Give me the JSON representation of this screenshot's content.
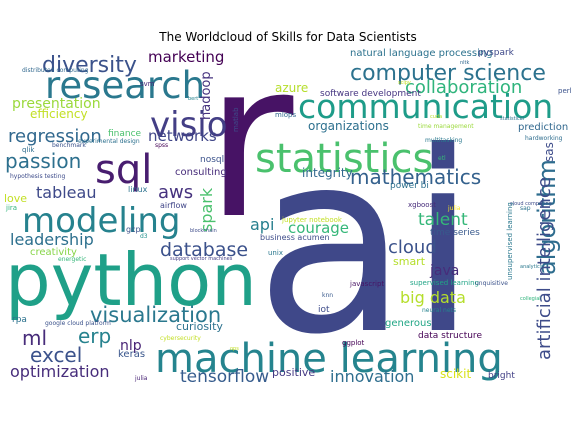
{
  "title": "The Worldcloud of Skills for Data Scientists",
  "palette": "viridis",
  "words": [
    {
      "text": "ai",
      "color": "#3f4889"
    },
    {
      "text": "r",
      "color": "#471365"
    },
    {
      "text": "python",
      "color": "#1fa088"
    },
    {
      "text": "machine learning",
      "color": "#25848e"
    },
    {
      "text": "statistics",
      "color": "#4ac16d"
    },
    {
      "text": "communication",
      "color": "#1e9c89"
    },
    {
      "text": "research",
      "color": "#2a788e"
    },
    {
      "text": "modeling",
      "color": "#26828e"
    },
    {
      "text": "computer science",
      "color": "#2c728e"
    },
    {
      "text": "sql",
      "color": "#481d6f"
    },
    {
      "text": "visio",
      "color": "#433e85"
    },
    {
      "text": "diversity",
      "color": "#3b528b"
    },
    {
      "text": "mathematics",
      "color": "#34618d"
    },
    {
      "text": "algorithm",
      "color": "#2e6d8e"
    },
    {
      "text": "database",
      "color": "#3b518b"
    },
    {
      "text": "visualization",
      "color": "#2a788e"
    },
    {
      "text": "artificial intelligence",
      "color": "#3e4c8a"
    },
    {
      "text": "excel",
      "color": "#3b528b"
    },
    {
      "text": "optimization",
      "color": "#472d7b"
    },
    {
      "text": "tensorflow",
      "color": "#365c8d"
    },
    {
      "text": "passion",
      "color": "#2d708e"
    },
    {
      "text": "regression",
      "color": "#31688e"
    },
    {
      "text": "presentation",
      "color": "#9bd93c"
    },
    {
      "text": "collaboration",
      "color": "#2fb47c"
    },
    {
      "text": "networks",
      "color": "#404688"
    },
    {
      "text": "tableau",
      "color": "#3e4989"
    },
    {
      "text": "aws",
      "color": "#46327e"
    },
    {
      "text": "leadership",
      "color": "#2d708e"
    },
    {
      "text": "spark",
      "color": "#4ac16d"
    },
    {
      "text": "cloud",
      "color": "#3b528b"
    },
    {
      "text": "talent",
      "color": "#35b779"
    },
    {
      "text": "big data",
      "color": "#b5de2b"
    },
    {
      "text": "ml",
      "color": "#472c7a"
    },
    {
      "text": "erp",
      "color": "#26828e"
    },
    {
      "text": "nlp",
      "color": "#482475"
    },
    {
      "text": "innovation",
      "color": "#2e6e8e"
    },
    {
      "text": "api",
      "color": "#277f8e"
    },
    {
      "text": "courage",
      "color": "#35b779"
    },
    {
      "text": "java",
      "color": "#472c7a"
    },
    {
      "text": "marketing",
      "color": "#440154"
    },
    {
      "text": "efficiency",
      "color": "#c2df23"
    },
    {
      "text": "hadoop",
      "color": "#46337f"
    },
    {
      "text": "azure",
      "color": "#b5de2b"
    },
    {
      "text": "organizations",
      "color": "#2d708e"
    },
    {
      "text": "integrity",
      "color": "#31688e"
    },
    {
      "text": "natural language processing",
      "color": "#2c728e"
    },
    {
      "text": "software development",
      "color": "#453581"
    },
    {
      "text": "sas",
      "color": "#3e4c8a"
    },
    {
      "text": "time series",
      "color": "#38598c"
    },
    {
      "text": "scikit",
      "color": "#d8e219"
    },
    {
      "text": "positive",
      "color": "#443983"
    },
    {
      "text": "curiosity",
      "color": "#2c728e"
    },
    {
      "text": "consulting",
      "color": "#472c7a"
    },
    {
      "text": "creativity",
      "color": "#87d549"
    },
    {
      "text": "smart",
      "color": "#b5de2b"
    },
    {
      "text": "generous",
      "color": "#21a685"
    },
    {
      "text": "love",
      "color": "#c2df23"
    },
    {
      "text": "pyspark",
      "color": "#3e4989"
    },
    {
      "text": "prediction",
      "color": "#31688e"
    },
    {
      "text": "keras",
      "color": "#39568c"
    },
    {
      "text": "linux",
      "color": "#2c728e"
    },
    {
      "text": "airflow",
      "color": "#404688"
    },
    {
      "text": "nosql",
      "color": "#3b528b"
    },
    {
      "text": "finance",
      "color": "#4ac16d"
    },
    {
      "text": "power bi",
      "color": "#2d708e"
    },
    {
      "text": "bright",
      "color": "#424086"
    },
    {
      "text": "data structure",
      "color": "#440154"
    },
    {
      "text": "xgboost",
      "color": "#472c7a"
    },
    {
      "text": "supervised learning",
      "color": "#20a486"
    },
    {
      "text": "unsupervised learning",
      "color": "#2a788e"
    },
    {
      "text": "business acumen",
      "color": "#3e4c8a"
    },
    {
      "text": "jupyter notebook",
      "color": "#c2df23"
    },
    {
      "text": "gcp",
      "color": "#3b528b"
    },
    {
      "text": "unix",
      "color": "#2a788e"
    },
    {
      "text": "iot",
      "color": "#3e4c8a"
    },
    {
      "text": "javascript",
      "color": "#471365"
    },
    {
      "text": "knn",
      "color": "#38598c"
    },
    {
      "text": "svm",
      "color": "#482878"
    },
    {
      "text": "matlab",
      "color": "#3e4c8a"
    },
    {
      "text": "mlops",
      "color": "#31688e"
    },
    {
      "text": "perl",
      "color": "#3b528b"
    },
    {
      "text": "rpa",
      "color": "#2c728e"
    },
    {
      "text": "spss",
      "color": "#440154"
    },
    {
      "text": "qlik",
      "color": "#2e6d8e"
    },
    {
      "text": "benchmark",
      "color": "#3b528b"
    },
    {
      "text": "jira",
      "color": "#2fb47c"
    },
    {
      "text": "d3",
      "color": "#21918c"
    },
    {
      "text": "ggplot",
      "color": "#440154"
    },
    {
      "text": "julia",
      "color": "#482475"
    },
    {
      "text": "energetic",
      "color": "#35b779"
    },
    {
      "text": "blockchain",
      "color": "#3e4c8a"
    },
    {
      "text": "hardworking",
      "color": "#2e6d8e"
    },
    {
      "text": "multitasking",
      "color": "#2a788e"
    },
    {
      "text": "neural nets",
      "color": "#26828e"
    },
    {
      "text": "cybersecurity",
      "color": "#c2df23"
    },
    {
      "text": "time management",
      "color": "#9bd93c"
    },
    {
      "text": "experimental design",
      "color": "#2d708e"
    },
    {
      "text": "hypothesis testing",
      "color": "#3e4c8a"
    },
    {
      "text": "distributed computing",
      "color": "#31688e"
    },
    {
      "text": "google cloud platform",
      "color": "#3b528b"
    },
    {
      "text": "support vector machines",
      "color": "#433e85"
    },
    {
      "text": "unquisitive",
      "color": "#3b528b"
    },
    {
      "text": "statistical",
      "color": "#2c728e"
    },
    {
      "text": "scipy",
      "color": "#c2df23"
    },
    {
      "text": "julia",
      "color": "#fde725"
    },
    {
      "text": "collegial",
      "color": "#2fb47c"
    },
    {
      "text": "bert",
      "color": "#26828e"
    },
    {
      "text": "cloud computing",
      "color": "#3e4c8a"
    },
    {
      "text": "cuda",
      "color": "#b5de2b"
    },
    {
      "text": "etl",
      "color": "#35b779"
    },
    {
      "text": "ops",
      "color": "#c2df23"
    },
    {
      "text": "sap",
      "color": "#2c728e"
    },
    {
      "text": "nltk",
      "color": "#31688e"
    },
    {
      "text": "analytics",
      "color": "#2a788e"
    }
  ]
}
